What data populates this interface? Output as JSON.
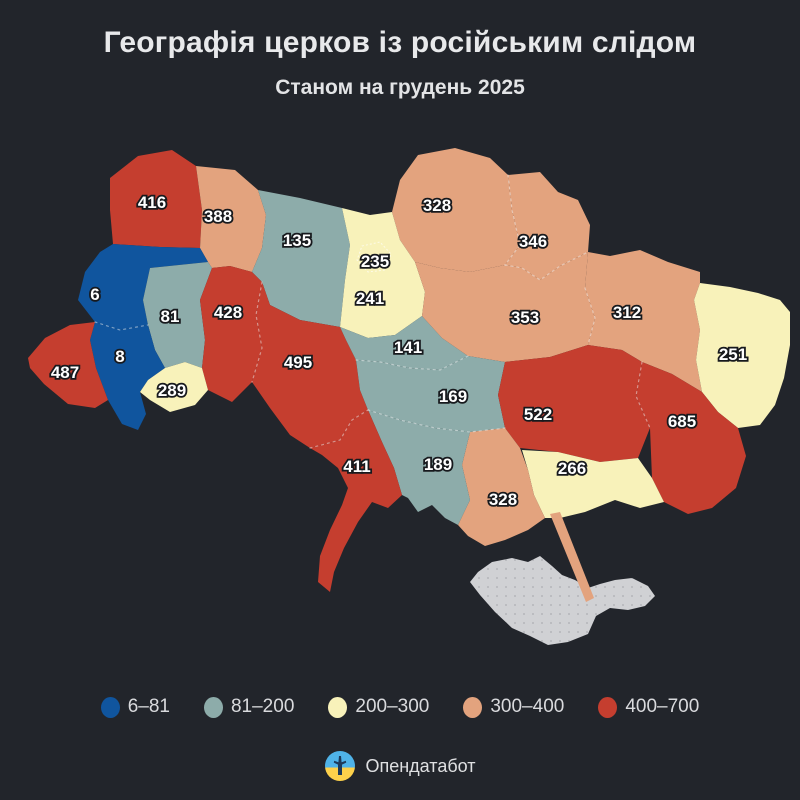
{
  "title": "Географія церков із російським слідом",
  "subtitle": "Станом на грудень 2025",
  "brand": {
    "name": "Опендатабот"
  },
  "legend": [
    {
      "label": "6–81",
      "color": "#10559e"
    },
    {
      "label": "81–200",
      "color": "#8dacaa"
    },
    {
      "label": "200–300",
      "color": "#f8f2ba"
    },
    {
      "label": "300–400",
      "color": "#e3a37e"
    },
    {
      "label": "400–700",
      "color": "#c53e2f"
    }
  ],
  "colors": {
    "background": "#22252b",
    "heading_text": "#e8e9eb",
    "label_fill": "#ffffff",
    "label_halo": "#17191d",
    "no_data": "#d0d1d4",
    "bucket_colors": {
      "6–81": "#10559e",
      "81–200": "#8dacaa",
      "200–300": "#f8f2ba",
      "300–400": "#e3a37e",
      "400–700": "#c53e2f",
      "no-data": "#d0d1d4"
    }
  },
  "chart_data": {
    "type": "choropleth-map",
    "title": "Географія церков із російським слідом",
    "subtitle": "Станом на грудень 2025",
    "legend_position": "bottom",
    "buckets": [
      "6–81",
      "81–200",
      "200–300",
      "300–400",
      "400–700"
    ],
    "regions": [
      {
        "id": "volyn",
        "value": 416,
        "bucket": "400–700"
      },
      {
        "id": "rivne",
        "value": 388,
        "bucket": "300–400"
      },
      {
        "id": "zhytomyr",
        "value": 135,
        "bucket": "81–200"
      },
      {
        "id": "chernihiv",
        "value": 328,
        "bucket": "300–400"
      },
      {
        "id": "sumy",
        "value": 346,
        "bucket": "300–400"
      },
      {
        "id": "kyiv-oblast",
        "value": 241,
        "bucket": "200–300"
      },
      {
        "id": "kyiv-city",
        "value": 235,
        "bucket": "200–300"
      },
      {
        "id": "lviv",
        "value": 6,
        "bucket": "6–81"
      },
      {
        "id": "ternopil",
        "value": 81,
        "bucket": "81–200"
      },
      {
        "id": "khmelnytskyi",
        "value": 428,
        "bucket": "400–700"
      },
      {
        "id": "ivano-frankivsk",
        "value": 8,
        "bucket": "6–81"
      },
      {
        "id": "zakarpattia",
        "value": 487,
        "bucket": "400–700"
      },
      {
        "id": "chernivtsi",
        "value": 289,
        "bucket": "200–300"
      },
      {
        "id": "vinnytsia",
        "value": 495,
        "bucket": "400–700"
      },
      {
        "id": "cherkasy",
        "value": 141,
        "bucket": "81–200"
      },
      {
        "id": "poltava",
        "value": 353,
        "bucket": "300–400"
      },
      {
        "id": "kharkiv",
        "value": 312,
        "bucket": "300–400"
      },
      {
        "id": "luhansk",
        "value": 251,
        "bucket": "200–300"
      },
      {
        "id": "kirovohrad",
        "value": 169,
        "bucket": "81–200"
      },
      {
        "id": "dnipro",
        "value": 522,
        "bucket": "400–700"
      },
      {
        "id": "donetsk",
        "value": 685,
        "bucket": "400–700"
      },
      {
        "id": "zaporizhzhia",
        "value": 266,
        "bucket": "200–300"
      },
      {
        "id": "kherson",
        "value": 328,
        "bucket": "300–400"
      },
      {
        "id": "mykolaiv",
        "value": 189,
        "bucket": "81–200"
      },
      {
        "id": "odesa",
        "value": 411,
        "bucket": "400–700"
      },
      {
        "id": "crimea",
        "value": null,
        "bucket": "no-data"
      }
    ]
  }
}
